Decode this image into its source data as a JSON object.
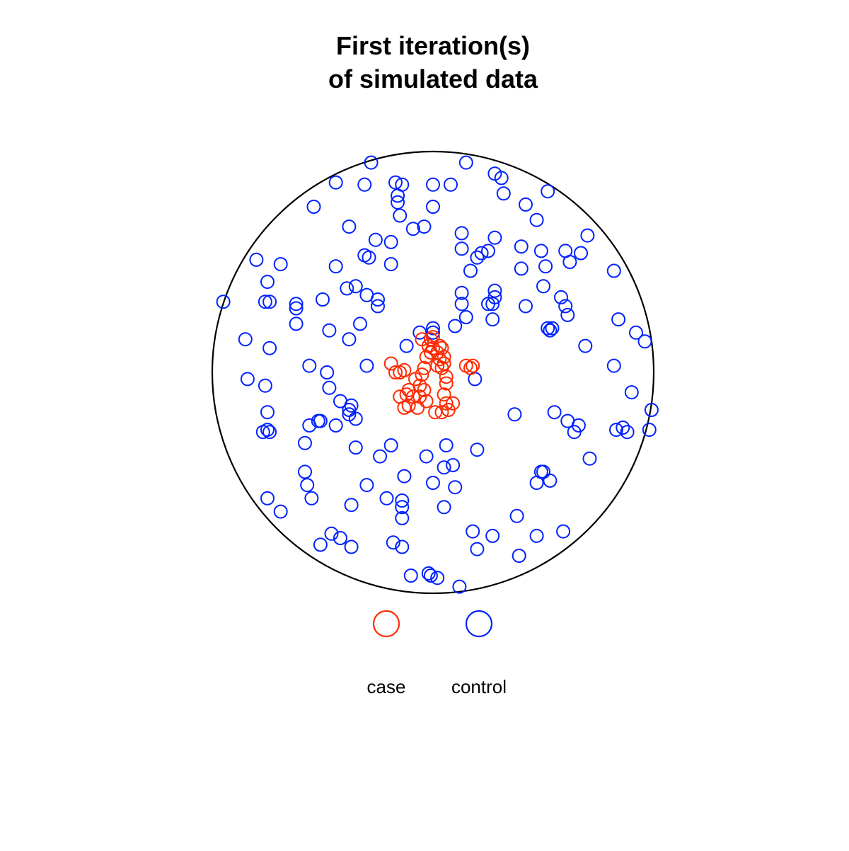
{
  "chart_data": {
    "type": "scatter",
    "title": [
      "First iteration(s)",
      "of simulated data"
    ],
    "xlabel": "",
    "ylabel": "",
    "xlim": [
      -1,
      1
    ],
    "ylim": [
      -1,
      1
    ],
    "grid": false,
    "window": "disc",
    "legend": {
      "placement": "bottom-center",
      "entries": [
        {
          "label": "case",
          "color": "#ff2a00"
        },
        {
          "label": "control",
          "color": "#0022ff"
        }
      ]
    },
    "series": [
      {
        "name": "case",
        "color": "#ff2a00",
        "points": [
          [
            -0.19,
            0.04
          ],
          [
            -0.17,
            0.0
          ],
          [
            -0.15,
            0.0
          ],
          [
            -0.13,
            0.01
          ],
          [
            -0.15,
            -0.11
          ],
          [
            -0.12,
            -0.1
          ],
          [
            -0.09,
            -0.11
          ],
          [
            -0.11,
            -0.08
          ],
          [
            -0.13,
            -0.16
          ],
          [
            -0.11,
            -0.15
          ],
          [
            -0.07,
            -0.16
          ],
          [
            -0.06,
            -0.11
          ],
          [
            -0.06,
            -0.06
          ],
          [
            -0.04,
            -0.08
          ],
          [
            -0.08,
            -0.03
          ],
          [
            -0.05,
            -0.01
          ],
          [
            -0.04,
            0.02
          ],
          [
            -0.03,
            0.07
          ],
          [
            -0.02,
            0.12
          ],
          [
            -0.01,
            0.09
          ],
          [
            -0.05,
            0.15
          ],
          [
            -0.01,
            0.15
          ],
          [
            0.0,
            0.11
          ],
          [
            0.0,
            0.16
          ],
          [
            0.02,
            0.09
          ],
          [
            0.03,
            0.06
          ],
          [
            0.02,
            0.03
          ],
          [
            0.04,
            0.02
          ],
          [
            0.05,
            0.04
          ],
          [
            0.04,
            0.11
          ],
          [
            0.03,
            0.12
          ],
          [
            0.05,
            0.07
          ],
          [
            0.06,
            -0.02
          ],
          [
            0.06,
            -0.05
          ],
          [
            0.05,
            -0.1
          ],
          [
            0.06,
            -0.14
          ],
          [
            0.09,
            -0.14
          ],
          [
            0.07,
            -0.17
          ],
          [
            0.04,
            -0.18
          ],
          [
            0.01,
            -0.18
          ],
          [
            -0.03,
            -0.13
          ],
          [
            0.17,
            0.02
          ],
          [
            0.15,
            0.03
          ],
          [
            0.18,
            0.03
          ]
        ]
      },
      {
        "name": "control",
        "color": "#0022ff",
        "points": [
          [
            -0.28,
            0.95
          ],
          [
            0.15,
            0.95
          ],
          [
            0.28,
            0.9
          ],
          [
            0.31,
            0.88
          ],
          [
            0.32,
            0.81
          ],
          [
            -0.44,
            0.86
          ],
          [
            -0.31,
            0.85
          ],
          [
            -0.17,
            0.86
          ],
          [
            -0.14,
            0.85
          ],
          [
            -0.16,
            0.8
          ],
          [
            -0.16,
            0.77
          ],
          [
            -0.15,
            0.71
          ],
          [
            0.0,
            0.85
          ],
          [
            0.08,
            0.85
          ],
          [
            -0.54,
            0.75
          ],
          [
            0.0,
            0.75
          ],
          [
            0.42,
            0.76
          ],
          [
            0.52,
            0.82
          ],
          [
            0.47,
            0.69
          ],
          [
            -0.04,
            0.66
          ],
          [
            -0.09,
            0.65
          ],
          [
            -0.38,
            0.66
          ],
          [
            0.13,
            0.63
          ],
          [
            0.28,
            0.61
          ],
          [
            0.7,
            0.62
          ],
          [
            -0.26,
            0.6
          ],
          [
            -0.19,
            0.59
          ],
          [
            0.13,
            0.56
          ],
          [
            0.22,
            0.54
          ],
          [
            0.2,
            0.52
          ],
          [
            0.25,
            0.55
          ],
          [
            0.4,
            0.57
          ],
          [
            0.49,
            0.55
          ],
          [
            -0.31,
            0.53
          ],
          [
            -0.29,
            0.52
          ],
          [
            -0.19,
            0.49
          ],
          [
            0.6,
            0.55
          ],
          [
            0.67,
            0.54
          ],
          [
            0.62,
            0.5
          ],
          [
            -0.8,
            0.51
          ],
          [
            -0.69,
            0.49
          ],
          [
            -0.44,
            0.48
          ],
          [
            0.17,
            0.46
          ],
          [
            0.4,
            0.47
          ],
          [
            0.51,
            0.48
          ],
          [
            0.82,
            0.46
          ],
          [
            -0.75,
            0.41
          ],
          [
            -0.39,
            0.38
          ],
          [
            -0.35,
            0.39
          ],
          [
            -0.3,
            0.35
          ],
          [
            -0.25,
            0.33
          ],
          [
            0.13,
            0.36
          ],
          [
            0.28,
            0.37
          ],
          [
            0.28,
            0.34
          ],
          [
            0.5,
            0.39
          ],
          [
            0.58,
            0.34
          ],
          [
            -0.95,
            0.32
          ],
          [
            -0.76,
            0.32
          ],
          [
            -0.74,
            0.32
          ],
          [
            -0.62,
            0.31
          ],
          [
            -0.62,
            0.29
          ],
          [
            -0.5,
            0.33
          ],
          [
            -0.25,
            0.3
          ],
          [
            0.13,
            0.31
          ],
          [
            0.25,
            0.31
          ],
          [
            0.27,
            0.31
          ],
          [
            0.42,
            0.3
          ],
          [
            0.6,
            0.3
          ],
          [
            0.61,
            0.26
          ],
          [
            -0.62,
            0.22
          ],
          [
            -0.47,
            0.19
          ],
          [
            -0.33,
            0.22
          ],
          [
            0.15,
            0.25
          ],
          [
            0.27,
            0.24
          ],
          [
            0.1,
            0.21
          ],
          [
            0.0,
            0.2
          ],
          [
            0.52,
            0.2
          ],
          [
            0.54,
            0.2
          ],
          [
            -0.38,
            0.15
          ],
          [
            -0.12,
            0.12
          ],
          [
            -0.06,
            0.18
          ],
          [
            0.0,
            0.18
          ],
          [
            0.53,
            0.19
          ],
          [
            0.84,
            0.24
          ],
          [
            0.92,
            0.18
          ],
          [
            0.96,
            0.14
          ],
          [
            -0.85,
            0.15
          ],
          [
            -0.74,
            0.11
          ],
          [
            0.69,
            0.12
          ],
          [
            0.82,
            0.03
          ],
          [
            -0.56,
            0.03
          ],
          [
            -0.48,
            0.0
          ],
          [
            -0.3,
            0.03
          ],
          [
            -0.84,
            -0.03
          ],
          [
            -0.76,
            -0.06
          ],
          [
            -0.47,
            -0.07
          ],
          [
            0.19,
            -0.03
          ],
          [
            0.9,
            -0.09
          ],
          [
            -0.42,
            -0.13
          ],
          [
            -0.38,
            -0.17
          ],
          [
            -0.37,
            -0.15
          ],
          [
            -0.38,
            -0.19
          ],
          [
            -0.35,
            -0.21
          ],
          [
            0.99,
            -0.17
          ],
          [
            0.98,
            -0.26
          ],
          [
            -0.75,
            -0.18
          ],
          [
            -0.75,
            -0.26
          ],
          [
            -0.56,
            -0.24
          ],
          [
            -0.52,
            -0.22
          ],
          [
            -0.51,
            -0.22
          ],
          [
            -0.44,
            -0.24
          ],
          [
            0.37,
            -0.19
          ],
          [
            0.55,
            -0.18
          ],
          [
            0.61,
            -0.22
          ],
          [
            0.66,
            -0.24
          ],
          [
            0.64,
            -0.27
          ],
          [
            0.83,
            -0.26
          ],
          [
            0.86,
            -0.25
          ],
          [
            0.88,
            -0.27
          ],
          [
            -0.77,
            -0.27
          ],
          [
            -0.74,
            -0.27
          ],
          [
            -0.58,
            -0.32
          ],
          [
            -0.35,
            -0.34
          ],
          [
            -0.19,
            -0.33
          ],
          [
            -0.24,
            -0.38
          ],
          [
            -0.03,
            -0.38
          ],
          [
            0.06,
            -0.33
          ],
          [
            0.2,
            -0.35
          ],
          [
            0.09,
            -0.42
          ],
          [
            0.05,
            -0.43
          ],
          [
            0.71,
            -0.39
          ],
          [
            -0.58,
            -0.45
          ],
          [
            -0.57,
            -0.51
          ],
          [
            -0.3,
            -0.51
          ],
          [
            -0.13,
            -0.47
          ],
          [
            0.0,
            -0.5
          ],
          [
            0.1,
            -0.52
          ],
          [
            0.49,
            -0.45
          ],
          [
            0.5,
            -0.45
          ],
          [
            0.47,
            -0.5
          ],
          [
            0.53,
            -0.49
          ],
          [
            -0.75,
            -0.57
          ],
          [
            -0.55,
            -0.57
          ],
          [
            -0.37,
            -0.6
          ],
          [
            -0.21,
            -0.57
          ],
          [
            -0.14,
            -0.58
          ],
          [
            -0.14,
            -0.61
          ],
          [
            0.05,
            -0.61
          ],
          [
            -0.69,
            -0.63
          ],
          [
            -0.14,
            -0.66
          ],
          [
            0.38,
            -0.65
          ],
          [
            -0.46,
            -0.73
          ],
          [
            -0.42,
            -0.75
          ],
          [
            -0.51,
            -0.78
          ],
          [
            -0.37,
            -0.79
          ],
          [
            0.18,
            -0.72
          ],
          [
            0.27,
            -0.74
          ],
          [
            0.47,
            -0.74
          ],
          [
            0.59,
            -0.72
          ],
          [
            -0.18,
            -0.77
          ],
          [
            -0.14,
            -0.79
          ],
          [
            0.2,
            -0.8
          ],
          [
            0.39,
            -0.83
          ],
          [
            -0.1,
            -0.92
          ],
          [
            -0.02,
            -0.91
          ],
          [
            -0.01,
            -0.92
          ],
          [
            0.02,
            -0.93
          ],
          [
            0.12,
            -0.97
          ]
        ]
      }
    ]
  }
}
